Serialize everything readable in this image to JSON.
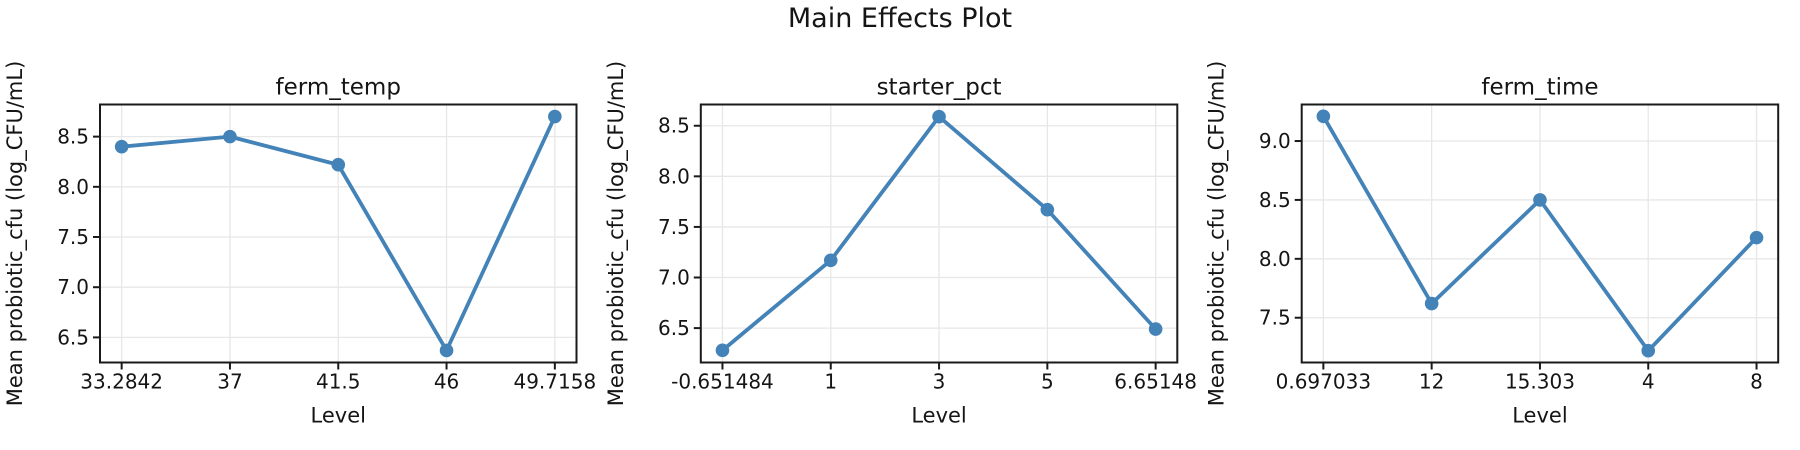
{
  "figure": {
    "suptitle": "Main Effects Plot"
  },
  "chart_data": {
    "type": "line",
    "title": "Main Effects Plot",
    "xlabel": "Level",
    "ylabel": "Mean probiotic_cfu (log_CFU/mL)",
    "line_color": "#4383b8",
    "grid": true,
    "legend": false,
    "marker": "circle",
    "subplots": [
      {
        "factor": "ferm_temp",
        "x_tick_labels": [
          "33.2842",
          "37",
          "41.5",
          "46",
          "49.7158"
        ],
        "mean_values": [
          8.4,
          8.5,
          8.22,
          6.37,
          8.7
        ],
        "y_ticks": [
          6.5,
          7.0,
          7.5,
          8.0,
          8.5
        ],
        "ylim": [
          6.25,
          8.82
        ]
      },
      {
        "factor": "starter_pct",
        "x_tick_labels": [
          "-0.651484",
          "1",
          "3",
          "5",
          "6.65148"
        ],
        "mean_values": [
          6.28,
          7.17,
          8.59,
          7.67,
          6.49
        ],
        "y_ticks": [
          6.5,
          7.0,
          7.5,
          8.0,
          8.5
        ],
        "ylim": [
          6.16,
          8.71
        ]
      },
      {
        "factor": "ferm_time",
        "x_tick_labels": [
          "0.697033",
          "12",
          "15.303",
          "4",
          "8"
        ],
        "mean_values": [
          9.21,
          7.62,
          8.5,
          7.22,
          8.18
        ],
        "y_ticks": [
          7.5,
          8.0,
          8.5,
          9.0
        ],
        "ylim": [
          7.12,
          9.31
        ]
      }
    ]
  }
}
